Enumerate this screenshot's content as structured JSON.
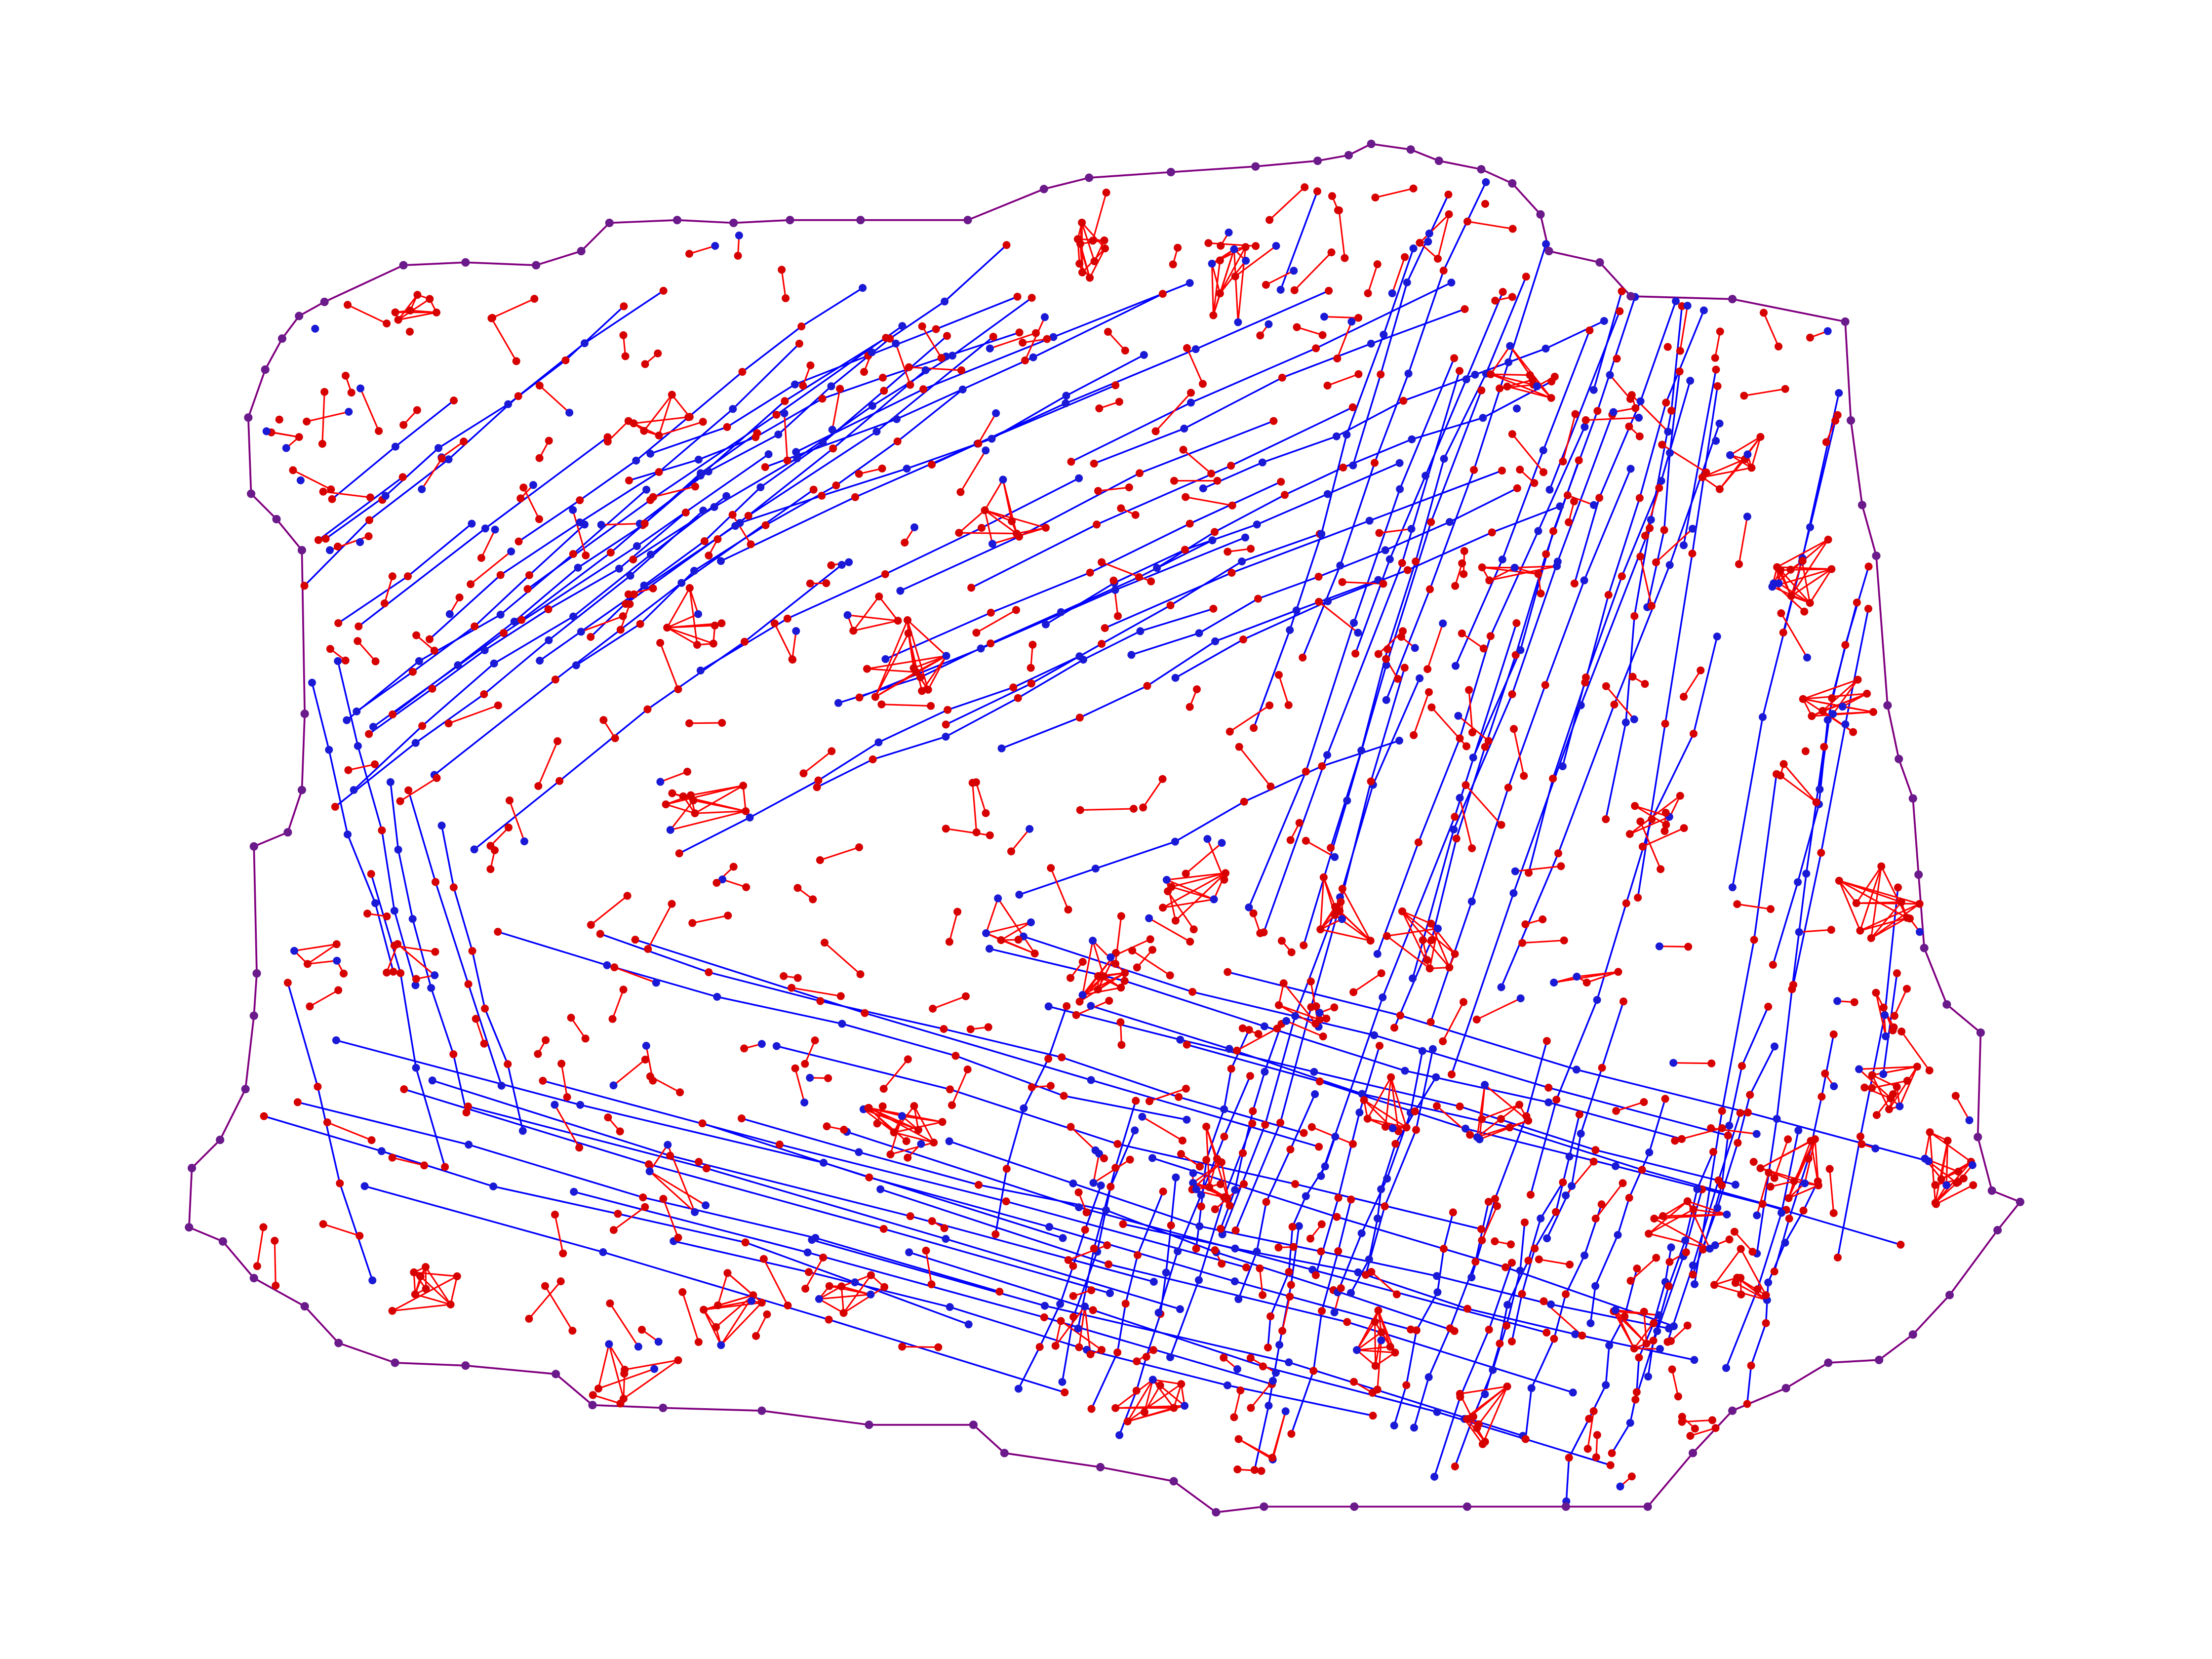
{
  "figure": {
    "type": "graph-drawing",
    "background": "#ffffff",
    "colors": {
      "interior_edge": "#0000ff",
      "cluster_edge": "#ff0000",
      "boundary_edge": "#800080",
      "interior_node": "#1a1ad6",
      "cluster_node": "#d60000",
      "boundary_node": "#6a1a8a"
    },
    "title": "",
    "legend": []
  }
}
